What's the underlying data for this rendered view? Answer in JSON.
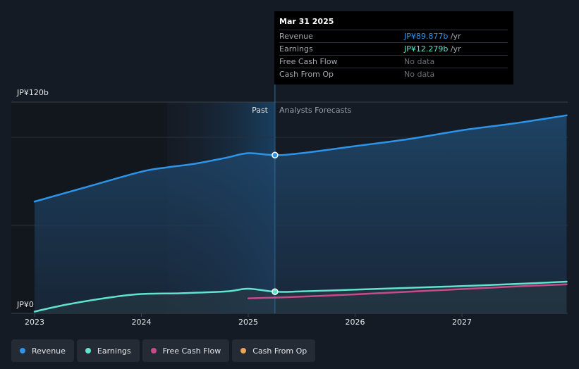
{
  "chart_data": {
    "type": "line",
    "y_axis": {
      "labels": [
        "JP¥120b",
        "JP¥0"
      ],
      "ylim": [
        0,
        120
      ]
    },
    "x_axis": {
      "ticks": [
        "2023",
        "2024",
        "2025",
        "2026",
        "2027"
      ],
      "xlim": [
        2022.82,
        2027.98
      ]
    },
    "divider_labels": {
      "past": "Past",
      "forecast": "Analysts Forecasts"
    },
    "highlight_date": 2025.25,
    "series": [
      {
        "name": "Revenue",
        "color": "#2e94e8",
        "x": [
          2023.0,
          2023.5,
          2024.0,
          2024.25,
          2024.5,
          2024.8,
          2025.0,
          2025.25,
          2025.5,
          2026.0,
          2026.5,
          2027.0,
          2027.5,
          2027.98
        ],
        "values": [
          63.5,
          72,
          80.5,
          83,
          85,
          88.5,
          91,
          89.9,
          91,
          95,
          99,
          104,
          108,
          112.5
        ]
      },
      {
        "name": "Earnings",
        "color": "#62e3cf",
        "x": [
          2023.0,
          2023.3,
          2023.7,
          2024.0,
          2024.4,
          2024.8,
          2025.0,
          2025.25,
          2025.5,
          2026.0,
          2026.5,
          2027.0,
          2027.5,
          2027.98
        ],
        "values": [
          1,
          5,
          9,
          11,
          11.5,
          12.5,
          14,
          12.3,
          12.5,
          13.5,
          14.5,
          15.5,
          16.7,
          18
        ]
      },
      {
        "name": "Free Cash Flow",
        "color": "#c84b89",
        "x": [
          2025.0,
          2025.5,
          2026.0,
          2026.5,
          2027.0,
          2027.5,
          2027.98
        ],
        "values": [
          8.5,
          9.5,
          10.8,
          12.3,
          13.8,
          15.3,
          16.5
        ]
      },
      {
        "name": "Cash From Op",
        "color": "#e9a55a",
        "x": [],
        "values": []
      }
    ]
  },
  "tooltip": {
    "date": "Mar 31 2025",
    "rows": [
      {
        "label": "Revenue",
        "value": "JP¥89.877b",
        "unit": " /yr",
        "color": "#2e94e8"
      },
      {
        "label": "Earnings",
        "value": "JP¥12.279b",
        "unit": " /yr",
        "color": "#62e3cf"
      },
      {
        "label": "Free Cash Flow",
        "value": "No data",
        "unit": "",
        "color": "#6b7077"
      },
      {
        "label": "Cash From Op",
        "value": "No data",
        "unit": "",
        "color": "#6b7077"
      }
    ]
  },
  "legend": [
    {
      "label": "Revenue",
      "color": "#2e94e8"
    },
    {
      "label": "Earnings",
      "color": "#62e3cf"
    },
    {
      "label": "Free Cash Flow",
      "color": "#c84b89"
    },
    {
      "label": "Cash From Op",
      "color": "#e9a55a"
    }
  ]
}
